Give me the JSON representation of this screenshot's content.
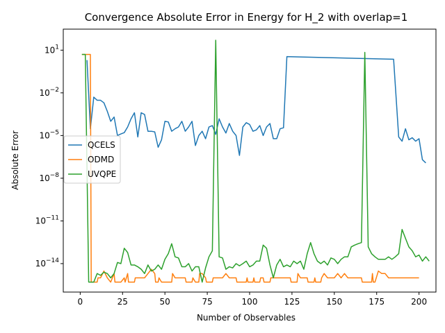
{
  "chart_data": {
    "type": "line",
    "title": "Convergence Absolute Error in Energy for H_2 with overlap=1",
    "xlabel": "Number of Observables",
    "ylabel": "Absolute Error",
    "xlim": [
      -10,
      210
    ],
    "ylim": [
      1e-16,
      300
    ],
    "yscale": "log",
    "x_ticks": [
      0,
      25,
      50,
      75,
      100,
      125,
      150,
      175,
      200
    ],
    "y_ticks": [
      {
        "value": 1e-14,
        "label": "10^{-14}"
      },
      {
        "value": 1e-11,
        "label": "10^{-11}"
      },
      {
        "value": 1e-08,
        "label": "10^{-8}"
      },
      {
        "value": 1e-05,
        "label": "10^{-5}"
      },
      {
        "value": 0.01,
        "label": "10^{-2}"
      },
      {
        "value": 10,
        "label": "10^{1}"
      }
    ],
    "grid": false,
    "legend_position": "center-left",
    "series": [
      {
        "name": "QCELS",
        "color": "#1f77b4",
        "points": [
          [
            4,
            2.0
          ],
          [
            6,
            3e-05
          ],
          [
            8,
            0.005
          ],
          [
            10,
            0.003
          ],
          [
            12,
            0.003
          ],
          [
            14,
            0.002
          ],
          [
            16,
            0.0005
          ],
          [
            18,
            0.0001
          ],
          [
            20,
            0.0002
          ],
          [
            22,
            1e-05
          ],
          [
            24,
            1.3e-05
          ],
          [
            26,
            1.6e-05
          ],
          [
            28,
            4e-05
          ],
          [
            30,
            0.00015
          ],
          [
            32,
            0.0004
          ],
          [
            34,
            8e-06
          ],
          [
            36,
            0.0004
          ],
          [
            38,
            0.0003
          ],
          [
            40,
            2e-05
          ],
          [
            42,
            2e-05
          ],
          [
            44,
            1.8e-05
          ],
          [
            46,
            1.5e-06
          ],
          [
            48,
            5e-06
          ],
          [
            50,
            0.0001
          ],
          [
            52,
            9e-05
          ],
          [
            54,
            2e-05
          ],
          [
            56,
            3e-05
          ],
          [
            58,
            4e-05
          ],
          [
            60,
            0.0001
          ],
          [
            62,
            2e-05
          ],
          [
            64,
            4e-05
          ],
          [
            66,
            0.0001
          ],
          [
            68,
            2e-06
          ],
          [
            70,
            1e-05
          ],
          [
            72,
            2e-05
          ],
          [
            74,
            6e-06
          ],
          [
            76,
            4e-05
          ],
          [
            78,
            5e-05
          ],
          [
            80,
            1.2e-05
          ],
          [
            82,
            0.00015
          ],
          [
            84,
            4e-05
          ],
          [
            86,
            1.5e-05
          ],
          [
            88,
            7e-05
          ],
          [
            90,
            2e-05
          ],
          [
            92,
            1e-05
          ],
          [
            94,
            4e-07
          ],
          [
            96,
            4e-05
          ],
          [
            98,
            8e-05
          ],
          [
            100,
            6e-05
          ],
          [
            102,
            2e-05
          ],
          [
            104,
            2.5e-05
          ],
          [
            106,
            5e-05
          ],
          [
            108,
            1e-05
          ],
          [
            110,
            4e-05
          ],
          [
            112,
            7e-05
          ],
          [
            114,
            6e-06
          ],
          [
            116,
            6e-06
          ],
          [
            118,
            3e-05
          ],
          [
            120,
            3.5e-05
          ],
          [
            122,
            3.5
          ],
          [
            185,
            2.3
          ],
          [
            188,
            8e-06
          ],
          [
            190,
            4e-06
          ],
          [
            192,
            3e-05
          ],
          [
            194,
            5e-06
          ],
          [
            196,
            7e-06
          ],
          [
            198,
            4e-06
          ],
          [
            200,
            6e-06
          ],
          [
            202,
            2e-07
          ],
          [
            204,
            1.2e-07
          ]
        ]
      },
      {
        "name": "ODMD",
        "color": "#ff7f0e",
        "points": [
          [
            1,
            5
          ],
          [
            6,
            5
          ],
          [
            6.5,
            5e-16
          ],
          [
            10,
            5e-16
          ],
          [
            10.5,
            1e-15
          ],
          [
            12,
            1e-15
          ],
          [
            14,
            3e-15
          ],
          [
            16,
            1e-15
          ],
          [
            18,
            5e-16
          ],
          [
            20,
            2e-15
          ],
          [
            20.5,
            5e-16
          ],
          [
            22,
            5e-16
          ],
          [
            24,
            5e-16
          ],
          [
            26,
            1e-15
          ],
          [
            26.5,
            5e-16
          ],
          [
            28,
            2e-15
          ],
          [
            28.5,
            5e-16
          ],
          [
            32,
            5e-16
          ],
          [
            32.5,
            1e-15
          ],
          [
            38,
            1e-15
          ],
          [
            40,
            2e-15
          ],
          [
            42,
            4e-15
          ],
          [
            44,
            2e-15
          ],
          [
            44.5,
            5e-16
          ],
          [
            46,
            5e-16
          ],
          [
            46.5,
            1e-15
          ],
          [
            48,
            5e-16
          ],
          [
            54,
            5e-16
          ],
          [
            54.5,
            2e-15
          ],
          [
            56,
            1e-15
          ],
          [
            62,
            1e-15
          ],
          [
            62.5,
            5e-16
          ],
          [
            66,
            5e-16
          ],
          [
            66.5,
            1e-15
          ],
          [
            68,
            5e-16
          ],
          [
            70,
            5e-16
          ],
          [
            70.5,
            2e-15
          ],
          [
            72,
            2e-15
          ],
          [
            74,
            1e-15
          ],
          [
            74.5,
            5e-16
          ],
          [
            78,
            5e-16
          ],
          [
            78.5,
            1e-15
          ],
          [
            84,
            1e-15
          ],
          [
            86,
            2e-15
          ],
          [
            88,
            1e-15
          ],
          [
            92,
            1e-15
          ],
          [
            92.5,
            5e-16
          ],
          [
            98,
            5e-16
          ],
          [
            98.5,
            1e-15
          ],
          [
            99,
            5e-16
          ],
          [
            102,
            5e-16
          ],
          [
            102.5,
            1e-15
          ],
          [
            103,
            5e-16
          ],
          [
            106,
            5e-16
          ],
          [
            106.5,
            1e-15
          ],
          [
            108,
            1e-15
          ],
          [
            108.5,
            5e-16
          ],
          [
            112,
            5e-16
          ],
          [
            112.5,
            1e-15
          ],
          [
            124,
            1e-15
          ],
          [
            124.5,
            5e-16
          ],
          [
            128,
            5e-16
          ],
          [
            128.5,
            2e-15
          ],
          [
            130,
            1e-15
          ],
          [
            134,
            1e-15
          ],
          [
            134.5,
            5e-16
          ],
          [
            138,
            5e-16
          ],
          [
            138.5,
            1e-15
          ],
          [
            139,
            5e-16
          ],
          [
            142,
            5e-16
          ],
          [
            142.5,
            1e-15
          ],
          [
            144,
            2e-15
          ],
          [
            146,
            1e-15
          ],
          [
            150,
            1e-15
          ],
          [
            152,
            2e-15
          ],
          [
            154,
            1e-15
          ],
          [
            156,
            2e-15
          ],
          [
            158,
            1e-15
          ],
          [
            166,
            1e-15
          ],
          [
            166.5,
            5e-16
          ],
          [
            172,
            5e-16
          ],
          [
            172.5,
            2e-15
          ],
          [
            173,
            5e-16
          ],
          [
            174,
            5e-16
          ],
          [
            176,
            3e-15
          ],
          [
            178,
            2e-15
          ],
          [
            180,
            2e-15
          ],
          [
            182,
            1e-15
          ],
          [
            200,
            1e-15
          ]
        ]
      },
      {
        "name": "UVQPE",
        "color": "#2ca02c",
        "points": [
          [
            1,
            5
          ],
          [
            3,
            5
          ],
          [
            5,
            5e-16
          ],
          [
            8,
            5e-16
          ],
          [
            10,
            2e-15
          ],
          [
            12,
            1.5e-15
          ],
          [
            14,
            2.5e-15
          ],
          [
            16,
            2e-15
          ],
          [
            18,
            1e-15
          ],
          [
            20,
            2e-15
          ],
          [
            22,
            1.2e-14
          ],
          [
            24,
            1e-14
          ],
          [
            26,
            1.2e-13
          ],
          [
            28,
            6e-14
          ],
          [
            30,
            8e-15
          ],
          [
            32,
            8e-15
          ],
          [
            34,
            6e-15
          ],
          [
            36,
            4e-15
          ],
          [
            38,
            2e-15
          ],
          [
            40,
            8e-15
          ],
          [
            42,
            3e-15
          ],
          [
            44,
            4e-15
          ],
          [
            46,
            8e-15
          ],
          [
            48,
            4e-15
          ],
          [
            50,
            2e-14
          ],
          [
            52,
            5e-14
          ],
          [
            54,
            2.5e-13
          ],
          [
            56,
            3e-14
          ],
          [
            58,
            2.5e-14
          ],
          [
            60,
            6e-15
          ],
          [
            62,
            6e-15
          ],
          [
            64,
            1e-14
          ],
          [
            66,
            3e-15
          ],
          [
            68,
            6e-15
          ],
          [
            70,
            6e-15
          ],
          [
            72,
            5e-16
          ],
          [
            74,
            5e-15
          ],
          [
            76,
            3e-14
          ],
          [
            78,
            8e-14
          ],
          [
            80,
            50
          ],
          [
            82,
            3e-14
          ],
          [
            84,
            2.5e-14
          ],
          [
            86,
            4e-15
          ],
          [
            88,
            6e-15
          ],
          [
            90,
            5e-15
          ],
          [
            92,
            1e-14
          ],
          [
            94,
            7e-15
          ],
          [
            96,
            1e-14
          ],
          [
            98,
            1.5e-14
          ],
          [
            100,
            6e-15
          ],
          [
            102,
            8e-15
          ],
          [
            104,
            1.5e-14
          ],
          [
            106,
            1.5e-14
          ],
          [
            108,
            2e-13
          ],
          [
            110,
            1.2e-13
          ],
          [
            112,
            8e-15
          ],
          [
            114,
            1e-15
          ],
          [
            116,
            8e-15
          ],
          [
            118,
            2e-14
          ],
          [
            120,
            6e-15
          ],
          [
            122,
            8e-15
          ],
          [
            124,
            6e-15
          ],
          [
            126,
            1.5e-14
          ],
          [
            128,
            1e-14
          ],
          [
            130,
            1.5e-14
          ],
          [
            132,
            4e-15
          ],
          [
            134,
            5e-14
          ],
          [
            136,
            3e-13
          ],
          [
            138,
            5e-14
          ],
          [
            140,
            1.5e-14
          ],
          [
            142,
            1e-14
          ],
          [
            144,
            1.5e-14
          ],
          [
            146,
            8e-15
          ],
          [
            148,
            2.5e-14
          ],
          [
            150,
            2e-14
          ],
          [
            152,
            1e-14
          ],
          [
            154,
            2e-14
          ],
          [
            156,
            3e-14
          ],
          [
            158,
            3e-14
          ],
          [
            160,
            1.5e-13
          ],
          [
            162,
            2e-13
          ],
          [
            164,
            2.5e-13
          ],
          [
            166,
            3e-13
          ],
          [
            168,
            7
          ],
          [
            170,
            1.5e-13
          ],
          [
            172,
            5e-14
          ],
          [
            174,
            3e-14
          ],
          [
            176,
            2e-14
          ],
          [
            178,
            2e-14
          ],
          [
            180,
            2e-14
          ],
          [
            182,
            3e-14
          ],
          [
            184,
            2e-14
          ],
          [
            186,
            3e-14
          ],
          [
            188,
            5e-14
          ],
          [
            190,
            2.5e-12
          ],
          [
            192,
            6e-13
          ],
          [
            194,
            1.5e-13
          ],
          [
            196,
            8e-14
          ],
          [
            198,
            3e-14
          ],
          [
            200,
            4e-14
          ],
          [
            202,
            1.5e-14
          ],
          [
            204,
            3e-14
          ],
          [
            206,
            1.5e-14
          ]
        ]
      }
    ]
  }
}
